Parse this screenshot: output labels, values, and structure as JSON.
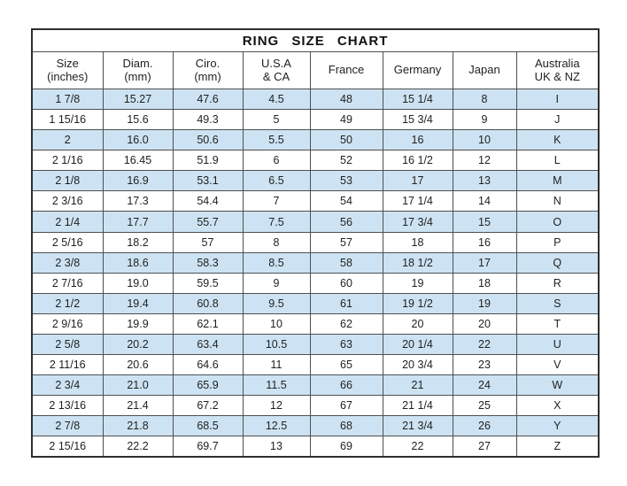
{
  "chart_data": {
    "type": "table",
    "title": "RING  SIZE  CHART",
    "columns": [
      "Size (inches)",
      "Diam. (mm)",
      "Ciro. (mm)",
      "U.S.A & CA",
      "France",
      "Germany",
      "Japan",
      "Australia UK & NZ"
    ],
    "column_header_lines": [
      [
        "Size",
        "(inches)"
      ],
      [
        "Diam.",
        "(mm)"
      ],
      [
        "Ciro.",
        "(mm)"
      ],
      [
        "U.S.A",
        "& CA"
      ],
      [
        "France"
      ],
      [
        "Germany"
      ],
      [
        "Japan"
      ],
      [
        "Australia",
        "UK & NZ"
      ]
    ],
    "rows": [
      [
        "1 7/8",
        "15.27",
        "47.6",
        "4.5",
        "48",
        "15 1/4",
        "8",
        "I"
      ],
      [
        "1 15/16",
        "15.6",
        "49.3",
        "5",
        "49",
        "15 3/4",
        "9",
        "J"
      ],
      [
        "2",
        "16.0",
        "50.6",
        "5.5",
        "50",
        "16",
        "10",
        "K"
      ],
      [
        "2 1/16",
        "16.45",
        "51.9",
        "6",
        "52",
        "16 1/2",
        "12",
        "L"
      ],
      [
        "2 1/8",
        "16.9",
        "53.1",
        "6.5",
        "53",
        "17",
        "13",
        "M"
      ],
      [
        "2 3/16",
        "17.3",
        "54.4",
        "7",
        "54",
        "17 1/4",
        "14",
        "N"
      ],
      [
        "2 1/4",
        "17.7",
        "55.7",
        "7.5",
        "56",
        "17 3/4",
        "15",
        "O"
      ],
      [
        "2 5/16",
        "18.2",
        "57",
        "8",
        "57",
        "18",
        "16",
        "P"
      ],
      [
        "2 3/8",
        "18.6",
        "58.3",
        "8.5",
        "58",
        "18 1/2",
        "17",
        "Q"
      ],
      [
        "2 7/16",
        "19.0",
        "59.5",
        "9",
        "60",
        "19",
        "18",
        "R"
      ],
      [
        "2 1/2",
        "19.4",
        "60.8",
        "9.5",
        "61",
        "19 1/2",
        "19",
        "S"
      ],
      [
        "2 9/16",
        "19.9",
        "62.1",
        "10",
        "62",
        "20",
        "20",
        "T"
      ],
      [
        "2 5/8",
        "20.2",
        "63.4",
        "10.5",
        "63",
        "20 1/4",
        "22",
        "U"
      ],
      [
        "2 11/16",
        "20.6",
        "64.6",
        "11",
        "65",
        "20 3/4",
        "23",
        "V"
      ],
      [
        "2 3/4",
        "21.0",
        "65.9",
        "11.5",
        "66",
        "21",
        "24",
        "W"
      ],
      [
        "2 13/16",
        "21.4",
        "67.2",
        "12",
        "67",
        "21 1/4",
        "25",
        "X"
      ],
      [
        "2 7/8",
        "21.8",
        "68.5",
        "12.5",
        "68",
        "21 3/4",
        "26",
        "Y"
      ],
      [
        "2 15/16",
        "22.2",
        "69.7",
        "13",
        "69",
        "22",
        "27",
        "Z"
      ]
    ],
    "striping": "alternating rows highlighted starting with first data row",
    "legend_position": "none",
    "grid": true
  },
  "colors": {
    "row_highlight": "#cde3f3",
    "border": "#4f4f4f",
    "outer_border": "#2e2e2e",
    "text": "#1f1f1f",
    "background": "#ffffff"
  }
}
